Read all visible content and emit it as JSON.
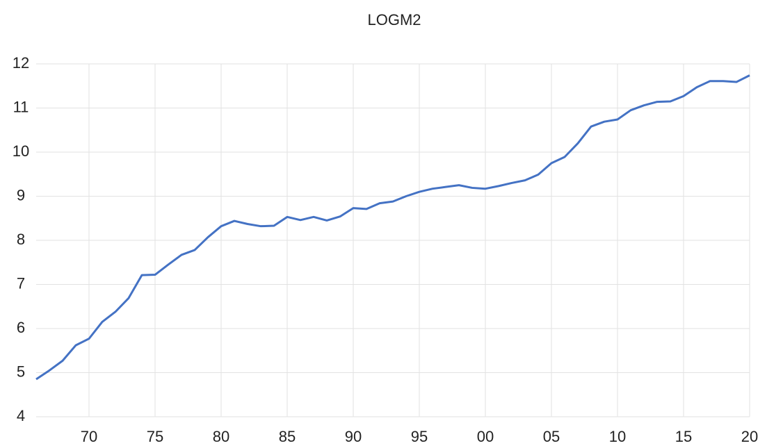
{
  "chart_data": {
    "type": "line",
    "title": "LOGM2",
    "categories": [
      null,
      null,
      null,
      null,
      "70",
      null,
      null,
      null,
      null,
      "75",
      null,
      null,
      null,
      null,
      "80",
      null,
      null,
      null,
      null,
      "85",
      null,
      null,
      null,
      null,
      "90",
      null,
      null,
      null,
      null,
      "95",
      null,
      null,
      null,
      null,
      "00",
      null,
      null,
      null,
      null,
      "05",
      null,
      null,
      null,
      null,
      "10",
      null,
      null,
      null,
      null,
      "15",
      null,
      null,
      null,
      null,
      "20"
    ],
    "series": [
      {
        "name": "LOGM2",
        "color": "#4472c4",
        "values": [
          4.85,
          5.05,
          5.27,
          5.62,
          5.77,
          6.15,
          6.38,
          6.69,
          7.21,
          7.22,
          7.45,
          7.67,
          7.78,
          8.07,
          8.32,
          8.44,
          8.37,
          8.32,
          8.33,
          8.53,
          8.46,
          8.53,
          8.45,
          8.54,
          8.73,
          8.71,
          8.84,
          8.88,
          9.0,
          9.1,
          9.17,
          9.21,
          9.25,
          9.19,
          9.17,
          9.23,
          9.3,
          9.36,
          9.49,
          9.75,
          9.89,
          10.2,
          10.58,
          10.69,
          10.74,
          10.95,
          11.06,
          11.14,
          11.15,
          11.27,
          11.47,
          11.61,
          11.61,
          11.59,
          11.74
        ]
      }
    ],
    "ylim": [
      4,
      12
    ],
    "yticks": [
      4,
      5,
      6,
      7,
      8,
      9,
      10,
      11,
      12
    ],
    "grid": true
  }
}
